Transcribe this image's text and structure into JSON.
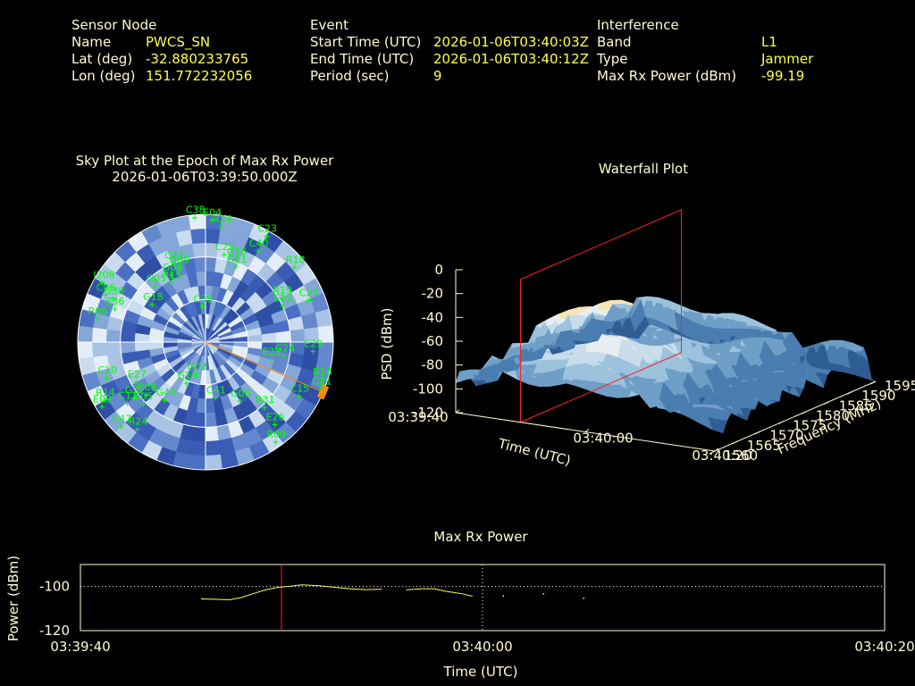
{
  "header": {
    "sensor": {
      "title": "Sensor Node",
      "rows": [
        {
          "label": "Name",
          "value": "PWCS_SN"
        },
        {
          "label": "Lat (deg)",
          "value": "-32.880233765"
        },
        {
          "label": "Lon (deg)",
          "value": "151.772232056"
        }
      ]
    },
    "event": {
      "title": "Event",
      "rows": [
        {
          "label": "Start Time (UTC)",
          "value": "2026-01-06T03:40:03Z"
        },
        {
          "label": "End Time (UTC)",
          "value": "2026-01-06T03:40:12Z"
        },
        {
          "label": "Period (sec)",
          "value": "9"
        }
      ]
    },
    "interference": {
      "title": "Interference",
      "rows": [
        {
          "label": "Band",
          "value": "L1"
        },
        {
          "label": "Type",
          "value": "Jammer"
        },
        {
          "label": "Max Rx Power (dBm)",
          "value": "-99.19"
        }
      ]
    }
  },
  "colors": {
    "label": "#fffbd0",
    "value": "#ffff4a",
    "satellite": "#00ff00",
    "marker": "#ff2020",
    "jammer": "#ff8c00"
  },
  "chart_data": [
    {
      "type": "scatter",
      "kind": "polar-sky-plot",
      "title": "Sky Plot at the Epoch of Max Rx Power",
      "subtitle": "2026-01-06T03:39:50.000Z",
      "elevation_rings_deg": [
        0,
        30,
        60
      ],
      "satellites": [
        {
          "id": "C38",
          "az": 355,
          "el": 2
        },
        {
          "id": "E04",
          "az": 3,
          "el": 4
        },
        {
          "id": "R24",
          "az": 8,
          "el": 8
        },
        {
          "id": "C23",
          "az": 30,
          "el": 4
        },
        {
          "id": "C40",
          "az": 30,
          "el": 16
        },
        {
          "id": "C25",
          "az": 12,
          "el": 27
        },
        {
          "id": "G56",
          "az": 20,
          "el": 28
        },
        {
          "id": "G11",
          "az": 22,
          "el": 33
        },
        {
          "id": "R18",
          "az": 50,
          "el": 8
        },
        {
          "id": "C27",
          "az": 338,
          "el": 30
        },
        {
          "id": "G03",
          "az": 333,
          "el": 37
        },
        {
          "id": "G09",
          "az": 340,
          "el": 34
        },
        {
          "id": "R15",
          "az": 330,
          "el": 42
        },
        {
          "id": "G05",
          "az": 318,
          "el": 37
        },
        {
          "id": "R19",
          "az": 60,
          "el": 28
        },
        {
          "id": "E22",
          "az": 65,
          "el": 30
        },
        {
          "id": "C25b",
          "az": 68,
          "el": 12
        },
        {
          "id": "I208",
          "az": 300,
          "el": 6
        },
        {
          "id": "C06",
          "az": 295,
          "el": 12
        },
        {
          "id": "G18",
          "az": 305,
          "el": 44
        },
        {
          "id": "G30",
          "az": 295,
          "el": 18
        },
        {
          "id": "E36",
          "az": 290,
          "el": 22
        },
        {
          "id": "R06",
          "az": 282,
          "el": 12
        },
        {
          "id": "C38b",
          "az": 355,
          "el": 65
        },
        {
          "id": "E29",
          "az": 95,
          "el": 14
        },
        {
          "id": "R16",
          "az": 108,
          "el": 4
        },
        {
          "id": "E23",
          "az": 105,
          "el": 42
        },
        {
          "id": "G24",
          "az": 100,
          "el": 34
        },
        {
          "id": "C15",
          "az": 120,
          "el": 14
        },
        {
          "id": "C21",
          "az": 112,
          "el": 2
        },
        {
          "id": "E05",
          "az": 225,
          "el": 28
        },
        {
          "id": "E27",
          "az": 240,
          "el": 34
        },
        {
          "id": "C10",
          "az": 250,
          "el": 16
        },
        {
          "id": "C11",
          "az": 232,
          "el": 20
        },
        {
          "id": "C08",
          "az": 228,
          "el": 34
        },
        {
          "id": "G40",
          "az": 215,
          "el": 40
        },
        {
          "id": "G07",
          "az": 196,
          "el": 66
        },
        {
          "id": "C41",
          "az": 170,
          "el": 50
        },
        {
          "id": "G17",
          "az": 205,
          "el": 58
        },
        {
          "id": "R31",
          "az": 138,
          "el": 28
        },
        {
          "id": "G06",
          "az": 150,
          "el": 42
        },
        {
          "id": "E26",
          "az": 140,
          "el": 14
        },
        {
          "id": "R09",
          "az": 145,
          "el": 4
        },
        {
          "id": "G22",
          "az": 232,
          "el": 26
        },
        {
          "id": "R24b",
          "az": 218,
          "el": 12
        },
        {
          "id": "C47",
          "az": 225,
          "el": 6
        },
        {
          "id": "R14",
          "az": 240,
          "el": 8
        },
        {
          "id": "E09",
          "az": 238,
          "el": 4
        }
      ],
      "jammer_direction": {
        "az_start": 110,
        "az_end": 116
      }
    },
    {
      "type": "area",
      "kind": "waterfall-3d",
      "title": "Waterfall Plot",
      "zlabel": "PSD (dBm)",
      "xlabel": "Time (UTC)",
      "ylabel": "Frequency (MHz)",
      "z_ticks": [
        "0",
        "-20",
        "-40",
        "-60",
        "-80",
        "-100",
        "-120"
      ],
      "x_ticks": [
        "03:39:40",
        "03:40:00",
        "03:40:20"
      ],
      "y_ticks": [
        "1560",
        "1565",
        "1570",
        "1575",
        "1580",
        "1585",
        "1590",
        "1595"
      ],
      "zlim": [
        -120,
        0
      ],
      "ylim": [
        1560,
        1595
      ],
      "max_power_epoch": "03:39:50"
    },
    {
      "type": "line",
      "title": "Max Rx Power",
      "xlabel": "Time (UTC)",
      "ylabel": "Power (dBm)",
      "x_ticks": [
        "03:39:40",
        "03:40:00",
        "03:40:20"
      ],
      "y_ticks": [
        "-100",
        "-120"
      ],
      "ylim": [
        -120,
        -90
      ],
      "threshold_dbm": -100,
      "marker_time_sec": 10,
      "series": [
        {
          "values": [
            [
              6.0,
              -105.6
            ],
            [
              6.8,
              -105.8
            ],
            [
              7.4,
              -106.0
            ],
            [
              8.0,
              -105.0
            ],
            [
              8.6,
              -103.2
            ],
            [
              9.2,
              -101.5
            ],
            [
              9.8,
              -100.4
            ],
            [
              10.4,
              -99.9
            ],
            [
              11.0,
              -99.2
            ],
            [
              11.8,
              -99.6
            ],
            [
              12.6,
              -100.3
            ],
            [
              13.4,
              -101.0
            ],
            [
              14.2,
              -101.4
            ],
            [
              15.0,
              -101.2
            ]
          ]
        },
        {
          "values": [
            [
              16.2,
              -101.5
            ],
            [
              17.0,
              -101.0
            ],
            [
              17.6,
              -101.0
            ],
            [
              18.2,
              -102.2
            ],
            [
              19.0,
              -103.3
            ],
            [
              19.5,
              -104.4
            ]
          ]
        },
        {
          "values": [
            [
              21.0,
              -104.0
            ]
          ]
        },
        {
          "values": [
            [
              23.0,
              -103.0
            ]
          ]
        },
        {
          "values": [
            [
              25.0,
              -105.0
            ]
          ]
        }
      ]
    }
  ]
}
